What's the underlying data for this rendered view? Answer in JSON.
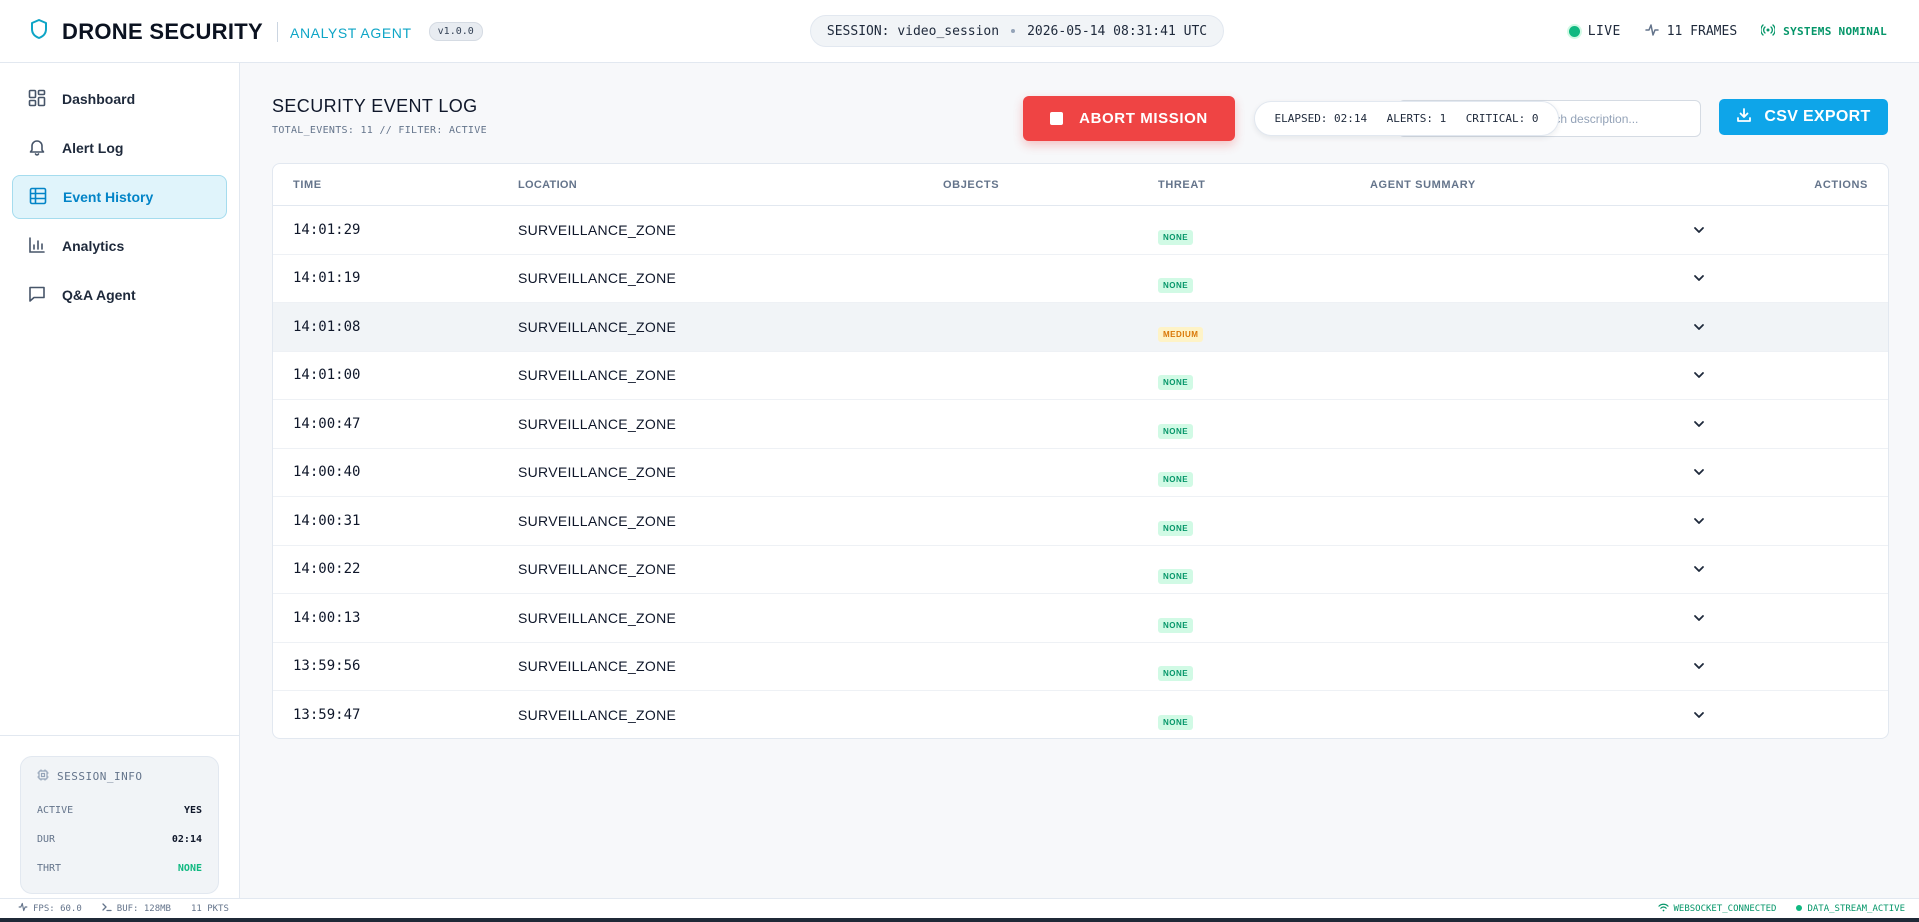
{
  "header": {
    "brand_title": "DRONE SECURITY",
    "brand_sub": "ANALYST AGENT",
    "version": "v1.0.0",
    "session_label": "SESSION: video_session",
    "session_time": "2026-05-14 08:31:41 UTC",
    "live": "LIVE",
    "frames": "11 FRAMES",
    "status": "SYSTEMS NOMINAL"
  },
  "sidebar": {
    "items": [
      {
        "label": "Dashboard",
        "icon": "dashboard-icon"
      },
      {
        "label": "Alert Log",
        "icon": "bell-icon"
      },
      {
        "label": "Event History",
        "icon": "table-icon",
        "active": true
      },
      {
        "label": "Analytics",
        "icon": "bar-chart-icon"
      },
      {
        "label": "Q&A Agent",
        "icon": "chat-icon"
      }
    ],
    "session_info": {
      "title": "SESSION_INFO",
      "rows": [
        {
          "k": "ACTIVE",
          "v": "YES"
        },
        {
          "k": "DUR",
          "v": "02:14"
        },
        {
          "k": "THRT",
          "v": "NONE"
        }
      ]
    }
  },
  "main": {
    "title": "SECURITY EVENT LOG",
    "subtitle": "TOTAL_EVENTS: 11 // FILTER: ACTIVE",
    "abort_label": "ABORT MISSION",
    "search_placeholder": "Search description...",
    "stats": {
      "elapsed": "ELAPSED: 02:14",
      "alerts": "ALERTS: 1",
      "critical": "CRITICAL: 0"
    },
    "csv_label": "CSV EXPORT",
    "columns": {
      "time": "TIME",
      "location": "LOCATION",
      "objects": "OBJECTS",
      "threat": "THREAT",
      "summary": "AGENT SUMMARY",
      "actions": "ACTIONS"
    },
    "rows": [
      {
        "time": "14:01:29",
        "location": "SURVEILLANCE_ZONE",
        "threat": "NONE"
      },
      {
        "time": "14:01:19",
        "location": "SURVEILLANCE_ZONE",
        "threat": "NONE"
      },
      {
        "time": "14:01:08",
        "location": "SURVEILLANCE_ZONE",
        "threat": "MEDIUM"
      },
      {
        "time": "14:01:00",
        "location": "SURVEILLANCE_ZONE",
        "threat": "NONE"
      },
      {
        "time": "14:00:47",
        "location": "SURVEILLANCE_ZONE",
        "threat": "NONE"
      },
      {
        "time": "14:00:40",
        "location": "SURVEILLANCE_ZONE",
        "threat": "NONE"
      },
      {
        "time": "14:00:31",
        "location": "SURVEILLANCE_ZONE",
        "threat": "NONE"
      },
      {
        "time": "14:00:22",
        "location": "SURVEILLANCE_ZONE",
        "threat": "NONE"
      },
      {
        "time": "14:00:13",
        "location": "SURVEILLANCE_ZONE",
        "threat": "NONE"
      },
      {
        "time": "13:59:56",
        "location": "SURVEILLANCE_ZONE",
        "threat": "NONE"
      },
      {
        "time": "13:59:47",
        "location": "SURVEILLANCE_ZONE",
        "threat": "NONE"
      }
    ]
  },
  "footer": {
    "fps": "FPS: 60.0",
    "buf": "BUF: 128MB",
    "pkts": "11 PKTS",
    "ws": "WEBSOCKET_CONNECTED",
    "stream": "DATA_STREAM_ACTIVE"
  },
  "colors": {
    "accent": "#0ea5e9",
    "danger": "#ef4444",
    "success": "#10b981",
    "warning": "#d97706"
  }
}
